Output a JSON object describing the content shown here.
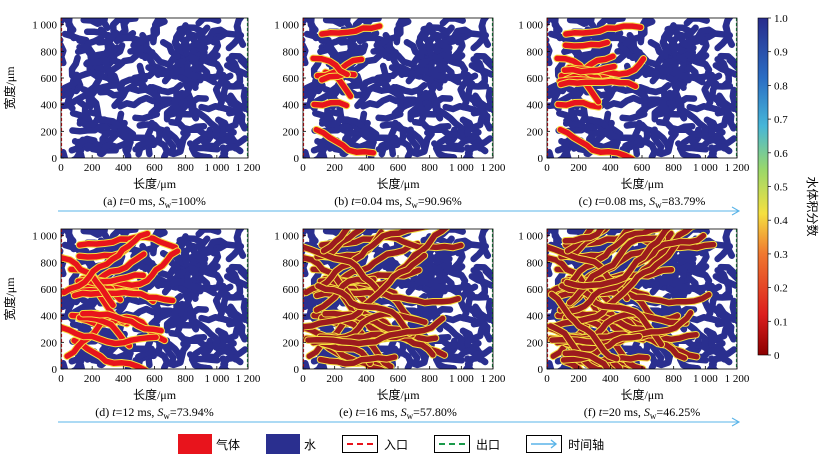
{
  "chart_data": {
    "type": "heatmap",
    "panels": [
      {
        "caption_prefix": "(a)",
        "t_label": "t",
        "t_value": "=0 ms",
        "s_label": "S",
        "s_sub": "w",
        "s_value": "=100%",
        "time_ms": 0,
        "water_saturation_pct": 100
      },
      {
        "caption_prefix": "(b)",
        "t_label": "t",
        "t_value": "=0.04 ms",
        "s_label": "S",
        "s_sub": "w",
        "s_value": "=90.96%",
        "time_ms": 0.04,
        "water_saturation_pct": 90.96
      },
      {
        "caption_prefix": "(c)",
        "t_label": "t",
        "t_value": "=0.08 ms",
        "s_label": "S",
        "s_sub": "w",
        "s_value": "=83.79%",
        "time_ms": 0.08,
        "water_saturation_pct": 83.79
      },
      {
        "caption_prefix": "(d)",
        "t_label": "t",
        "t_value": "=12 ms",
        "s_label": "S",
        "s_sub": "w",
        "s_value": "=73.94%",
        "time_ms": 12,
        "water_saturation_pct": 73.94
      },
      {
        "caption_prefix": "(e)",
        "t_label": "t",
        "t_value": "=16 ms",
        "s_label": "S",
        "s_sub": "w",
        "s_value": "=57.80%",
        "time_ms": 16,
        "water_saturation_pct": 57.8
      },
      {
        "caption_prefix": "(f)",
        "t_label": "t",
        "t_value": "=20 ms",
        "s_label": "S",
        "s_sub": "w",
        "s_value": "=46.25%",
        "time_ms": 20,
        "water_saturation_pct": 46.25
      }
    ],
    "xlabel": "长度/μm",
    "ylabel": "宽度/μm",
    "xticks": [
      "0",
      "200",
      "400",
      "600",
      "800",
      "1 000",
      "1 200"
    ],
    "yticks": [
      "0",
      "200",
      "400",
      "600",
      "800",
      "1 000"
    ],
    "xlim": [
      0,
      1200
    ],
    "ylim": [
      0,
      1050
    ],
    "colorbar": {
      "label": "水体积分数",
      "ticks": [
        "0",
        "0.1",
        "0.2",
        "0.3",
        "0.4",
        "0.5",
        "0.6",
        "0.7",
        "0.8",
        "0.9",
        "1.0"
      ],
      "range": [
        0,
        1
      ]
    },
    "legend": [
      {
        "kind": "swatch",
        "label": "气体",
        "color": "#e8141c"
      },
      {
        "kind": "swatch",
        "label": "水",
        "color": "#2a2f8f"
      },
      {
        "kind": "dashed",
        "label": "入口",
        "color": "#e8141c"
      },
      {
        "kind": "dashed",
        "label": "出口",
        "color": "#1a9a4a"
      },
      {
        "kind": "arrow",
        "label": "时间轴",
        "color": "#5ab4e8"
      }
    ],
    "colors": {
      "gas": "#e8141c",
      "gas_dark": "#9c1b1e",
      "water": "#2a2f8f",
      "inlet": "#e8141c",
      "outlet": "#1a9a4a",
      "time_axis": "#5ab4e8"
    }
  }
}
